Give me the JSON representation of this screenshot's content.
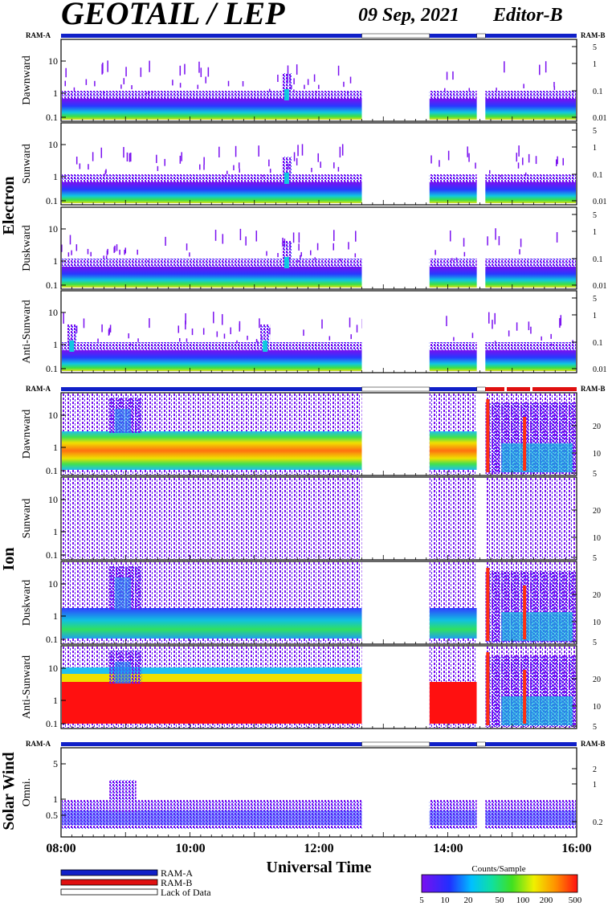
{
  "header": {
    "title": "GEOTAIL / LEP",
    "date": "09 Sep, 2021",
    "editor": "Editor-B"
  },
  "bar_labels": {
    "left": "RAM-A",
    "right": "RAM-B"
  },
  "species": [
    {
      "label": "Electron",
      "panels": [
        "Dawnward",
        "Sunward",
        "Duskward",
        "Anti-Sunward"
      ]
    },
    {
      "label": "Ion",
      "panels": [
        "Dawnward",
        "Sunward",
        "Duskward",
        "Anti-Sunward"
      ]
    },
    {
      "label": "Solar Wind",
      "panels": [
        "Omni."
      ]
    }
  ],
  "axes": {
    "electron_left_ticks": [
      "10",
      "1",
      "0.1"
    ],
    "electron_right_ticks": [
      "5",
      "1",
      "0.1",
      "0.01"
    ],
    "ion_left_ticks": [
      "10",
      "1",
      "0.1"
    ],
    "ion_right_ticks": [
      "20",
      "10",
      "5"
    ],
    "sw_left_ticks": [
      "5",
      "1",
      "0.5"
    ],
    "sw_right_ticks": [
      "2",
      "1",
      "0.2"
    ],
    "x_ticks": [
      "08:00",
      "10:00",
      "12:00",
      "14:00",
      "16:00"
    ],
    "xlabel": "Universal Time"
  },
  "legend": {
    "items": [
      {
        "label": "RAM-A",
        "color": "#1020c8"
      },
      {
        "label": "RAM-B",
        "color": "#e01010"
      },
      {
        "label": "Lack of Data",
        "color": "#ffffff"
      }
    ],
    "colorbar_title": "Counts/Sample",
    "colorbar_ticks": [
      "5",
      "10",
      "20",
      "50",
      "100",
      "200",
      "500"
    ]
  },
  "chart_data": {
    "type": "heatmap",
    "time_range": [
      "08:00",
      "16:00"
    ],
    "data_gaps": [
      [
        "12:40",
        "13:43"
      ],
      [
        "14:27",
        "14:35"
      ]
    ],
    "ram_mode_intervals": [
      {
        "mode": "RAM-B",
        "start": "14:35",
        "end": "16:00",
        "panels": "Ion"
      }
    ],
    "colorbar_range": [
      5,
      500
    ],
    "colors": {
      "ram_a": "#1020c8",
      "ram_b": "#e01010",
      "low": "#7b1cf0",
      "mid": "#10d080",
      "high": "#ff1010"
    }
  }
}
